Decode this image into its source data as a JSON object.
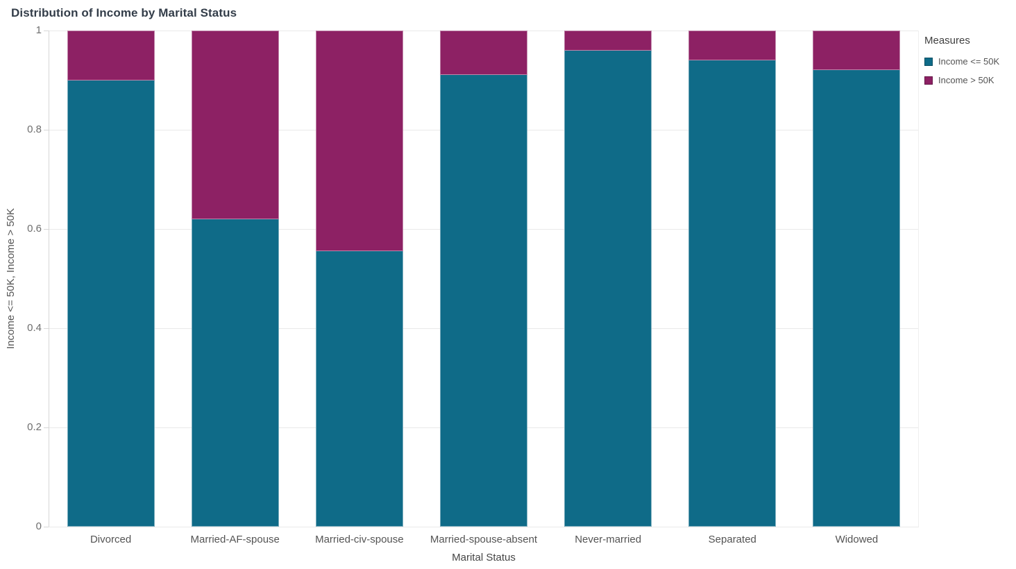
{
  "title": "Distribution of Income by Marital Status",
  "legend": {
    "title": "Measures",
    "items": [
      {
        "label": "Income <= 50K",
        "color": "#0f6b88"
      },
      {
        "label": "Income > 50K",
        "color": "#8d2164"
      }
    ]
  },
  "axes": {
    "x_title": "Marital Status",
    "y_title": "Income <= 50K, Income > 50K",
    "y_tick_labels": [
      "0",
      "0.2",
      "0.4",
      "0.6",
      "0.8",
      "1"
    ]
  },
  "chart_data": {
    "type": "bar",
    "subtype": "stacked-normalized",
    "title": "Distribution of Income by Marital Status",
    "xlabel": "Marital Status",
    "ylabel": "Income <= 50K, Income > 50K",
    "categories": [
      "Divorced",
      "Married-AF-spouse",
      "Married-civ-spouse",
      "Married-spouse-absent",
      "Never-married",
      "Separated",
      "Widowed"
    ],
    "series": [
      {
        "name": "Income <= 50K",
        "color": "#0f6b88",
        "values": [
          0.9,
          0.62,
          0.555,
          0.91,
          0.96,
          0.94,
          0.92
        ]
      },
      {
        "name": "Income > 50K",
        "color": "#8d2164",
        "values": [
          0.1,
          0.38,
          0.445,
          0.09,
          0.04,
          0.06,
          0.08
        ]
      }
    ],
    "ylim": [
      0,
      1
    ],
    "yticks": [
      0,
      0.2,
      0.4,
      0.6,
      0.8,
      1
    ],
    "grid": true,
    "legend_position": "top-right",
    "legend_title": "Measures"
  }
}
